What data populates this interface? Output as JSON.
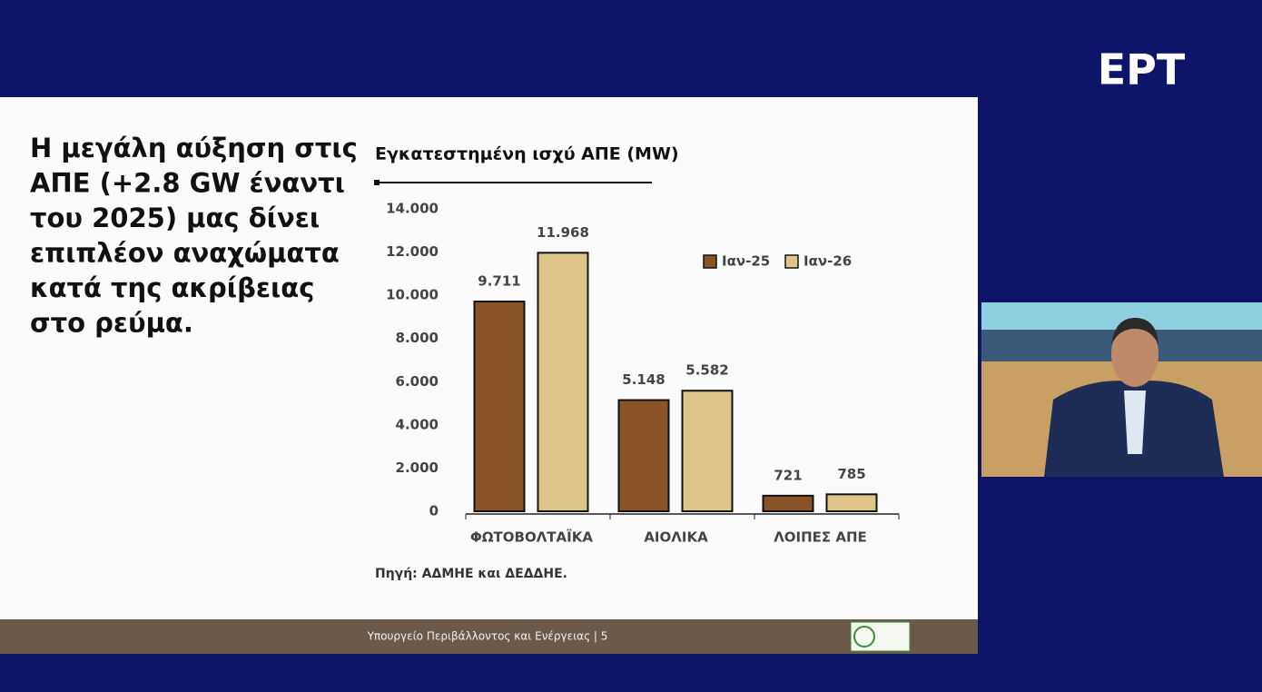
{
  "broadcaster": "ΕΡΤ",
  "slide": {
    "heading": [
      "Η μεγάλη αύξηση στις",
      "ΑΠΕ (+2.8 GW έναντι",
      "του 2025) μας δίνει",
      "επιπλέον αναχώματα",
      "κατά της ακρίβειας",
      "στο ρεύμα."
    ],
    "footer": "Υπουργείο Περιβάλλοντος και Ενέργειας | 5"
  },
  "chart_data": {
    "type": "bar",
    "title": "Εγκατεστημένη ισχύ ΑΠΕ (MW)",
    "source": "Πηγή: ΑΔΜΗΕ και ΔΕΔΔΗΕ.",
    "categories": [
      "ΦΩΤΟΒΟΛΤΑΪΚΑ",
      "ΑΙΟΛΙΚΑ",
      "ΛΟΙΠΕΣ ΑΠΕ"
    ],
    "series": [
      {
        "name": "Ιαν-25",
        "color": "#8b5426",
        "values": [
          9711,
          5148,
          721
        ],
        "value_labels": [
          "9.711",
          "5.148",
          "721"
        ]
      },
      {
        "name": "Ιαν-26",
        "color": "#dfc48a",
        "values": [
          11968,
          5582,
          785
        ],
        "value_labels": [
          "11.968",
          "5.582",
          "785"
        ]
      }
    ],
    "ylim": [
      0,
      14000
    ],
    "yticks": [
      0,
      {
        "value": 2000,
        "label": "2.000"
      },
      {
        "value": 4000,
        "label": "4.000"
      },
      {
        "value": 6000,
        "label": "6.000"
      },
      {
        "value": 8000,
        "label": "8.000"
      },
      {
        "value": 10000,
        "label": "10.000"
      },
      {
        "value": 12000,
        "label": "12.000"
      },
      {
        "value": 14000,
        "label": "14.000"
      }
    ],
    "grid": false,
    "legend": "top-right"
  }
}
